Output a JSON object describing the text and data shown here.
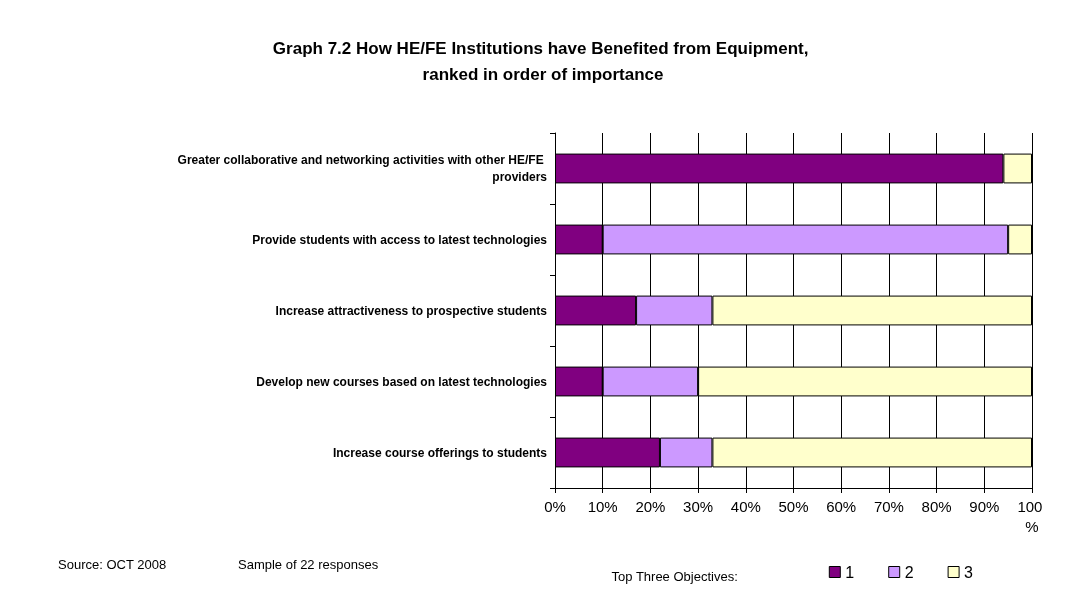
{
  "chart_data": {
    "type": "bar",
    "orientation": "horizontal",
    "stacked": true,
    "title": "Graph 7.2 How HE/FE Institutions have Benefited from Equipment, ranked in order of importance",
    "categories": [
      "Greater collaborative and networking activities with other HE/FE providers",
      "Provide students with access to latest technologies",
      "Increase attractiveness to prospective students",
      "Develop new courses based on latest technologies",
      "Increase course offerings to students"
    ],
    "series": [
      {
        "name": "1",
        "color": "#800080",
        "values": [
          94,
          10,
          17,
          10,
          22
        ]
      },
      {
        "name": "2",
        "color": "#cc99ff",
        "values": [
          0,
          85,
          16,
          20,
          11
        ]
      },
      {
        "name": "3",
        "color": "#ffffcc",
        "values": [
          6,
          5,
          67,
          70,
          67
        ]
      }
    ],
    "xlim": [
      0,
      100
    ],
    "xticks": [
      {
        "value": 0,
        "label": "0%"
      },
      {
        "value": 10,
        "label": "10%"
      },
      {
        "value": 20,
        "label": "20%"
      },
      {
        "value": 30,
        "label": "30%"
      },
      {
        "value": 40,
        "label": "40%"
      },
      {
        "value": 50,
        "label": "50%"
      },
      {
        "value": 60,
        "label": "60%"
      },
      {
        "value": 70,
        "label": "70%"
      },
      {
        "value": 80,
        "label": "80%"
      },
      {
        "value": 90,
        "label": "90%"
      },
      {
        "value": 100,
        "label": "100 %"
      }
    ],
    "grid": "x",
    "legend": "bottom right",
    "legend_title": "Top Three Objectives:",
    "annotations": [
      "Source: OCT 2008",
      "Sample of 22 responses"
    ]
  }
}
